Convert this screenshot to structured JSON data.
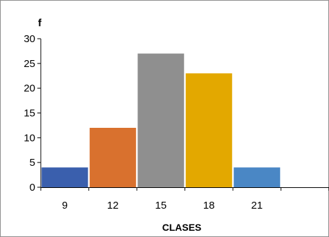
{
  "chart_data": {
    "type": "bar",
    "categories": [
      "9",
      "12",
      "15",
      "18",
      "21"
    ],
    "values": [
      4,
      12,
      27,
      23,
      4
    ],
    "colors": [
      "#3a5fad",
      "#d9712e",
      "#8f8f8f",
      "#e3a800",
      "#4a87c5"
    ],
    "ylabel": "f",
    "xlabel": "CLASES",
    "ylim": [
      0,
      30
    ],
    "yticks": [
      "0",
      "5",
      "10",
      "15",
      "20",
      "25",
      "30"
    ],
    "grid": false,
    "legend": "none"
  }
}
